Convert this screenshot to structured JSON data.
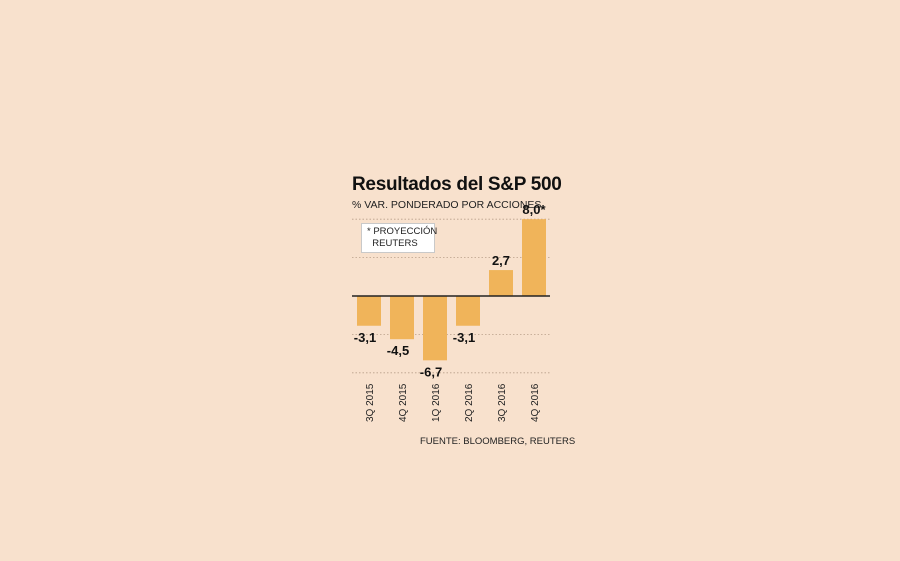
{
  "chart_data": {
    "type": "bar",
    "title": "Resultados del S&P 500",
    "subtitle": "% VAR. PONDERADO POR ACCIONES",
    "note": "* PROYECCIÓN\n  REUTERS",
    "source": "FUENTE: BLOOMBERG, REUTERS",
    "categories": [
      "3Q 2015",
      "4Q 2015",
      "1Q 2016",
      "2Q 2016",
      "3Q 2016",
      "4Q 2016"
    ],
    "values": [
      -3.1,
      -4.5,
      -6.7,
      -3.1,
      2.7,
      8.0
    ],
    "value_labels": [
      "-3,1",
      "-4,5",
      "-6,7",
      "-3,1",
      "2,7",
      "8,0*"
    ],
    "ylim": [
      -8.0,
      8.0
    ],
    "gridlines": [
      8.0,
      4.0,
      -4.0,
      -8.0
    ],
    "grid": true,
    "bar_color": "#f0b45a",
    "background_color": "#f8e1cd",
    "axis_color": "#222222",
    "grid_color": "#b9a08a"
  }
}
